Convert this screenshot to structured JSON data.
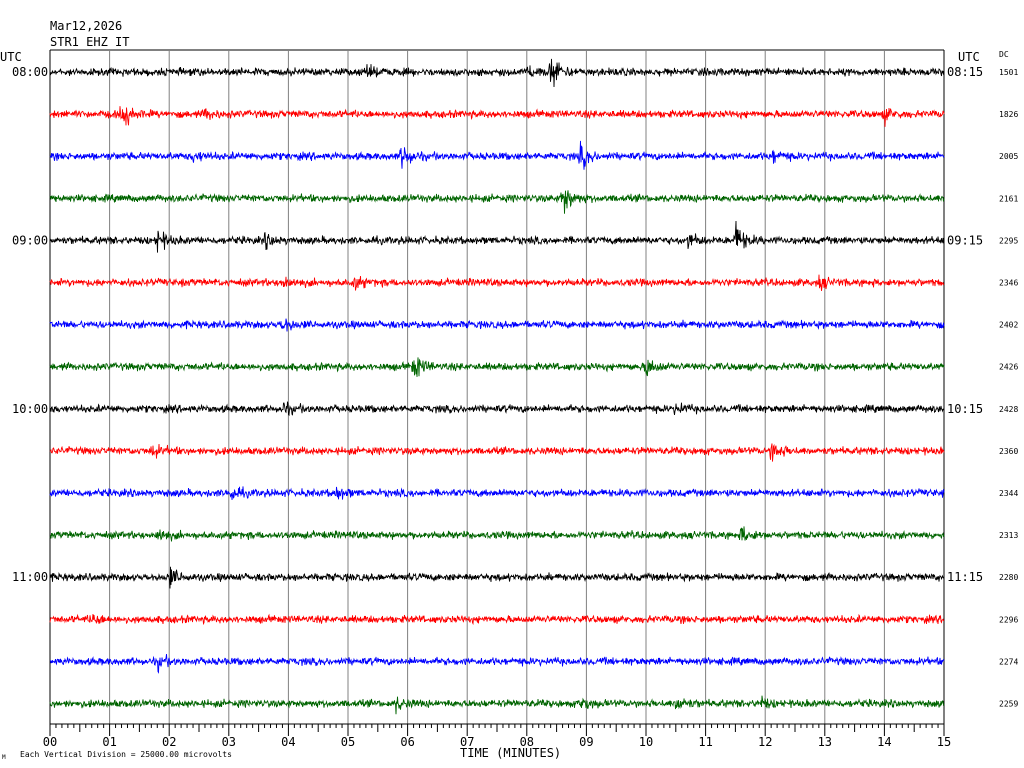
{
  "header": {
    "date": "Mar12,2026",
    "station": "STR1 EHZ IT"
  },
  "left_axis_label": "UTC",
  "right_axis_label": "UTC",
  "dc_label": "DC",
  "footer": {
    "scale_note": "Each Vertical Division = 25000.00 microvolts",
    "x_axis_title": "TIME (MINUTES)",
    "corner_mark": "M"
  },
  "colors": {
    "trace_cycle": [
      "#000000",
      "#ff0000",
      "#0000ff",
      "#006400"
    ],
    "grid": "#808080"
  },
  "chart_data": {
    "type": "line",
    "title": "Mar12,2026 STR1 EHZ IT",
    "xlabel": "TIME (MINUTES)",
    "ylabel": "",
    "xlim": [
      0,
      15
    ],
    "x_ticks": [
      "00",
      "01",
      "02",
      "03",
      "04",
      "05",
      "06",
      "07",
      "08",
      "09",
      "10",
      "11",
      "12",
      "13",
      "14",
      "15"
    ],
    "grid": true,
    "left_time_labels": [
      {
        "row": 0,
        "text": "08:00"
      },
      {
        "row": 4,
        "text": "09:00"
      },
      {
        "row": 8,
        "text": "10:00"
      },
      {
        "row": 12,
        "text": "11:00"
      }
    ],
    "right_time_labels": [
      {
        "row": 0,
        "text": "08:15"
      },
      {
        "row": 4,
        "text": "09:15"
      },
      {
        "row": 8,
        "text": "10:15"
      },
      {
        "row": 12,
        "text": "11:15"
      }
    ],
    "dc_offsets": [
      "1501",
      "1826",
      "2005",
      "2161",
      "2295",
      "2346",
      "2402",
      "2426",
      "2428",
      "2360",
      "2344",
      "2313",
      "2280",
      "2296",
      "2274",
      "2259"
    ],
    "events": [
      {
        "row": 0,
        "minute": 5.3,
        "amp": 1.2
      },
      {
        "row": 0,
        "minute": 8.0,
        "amp": 1.3
      },
      {
        "row": 0,
        "minute": 8.4,
        "amp": 3.8
      },
      {
        "row": 1,
        "minute": 1.2,
        "amp": 3.0
      },
      {
        "row": 1,
        "minute": 2.6,
        "amp": 1.1
      },
      {
        "row": 1,
        "minute": 14.0,
        "amp": 1.4
      },
      {
        "row": 2,
        "minute": 2.4,
        "amp": 1.1
      },
      {
        "row": 2,
        "minute": 5.9,
        "amp": 2.5
      },
      {
        "row": 2,
        "minute": 8.9,
        "amp": 2.2
      },
      {
        "row": 2,
        "minute": 12.1,
        "amp": 1.3
      },
      {
        "row": 3,
        "minute": 8.6,
        "amp": 3.4
      },
      {
        "row": 4,
        "minute": 1.8,
        "amp": 2.0
      },
      {
        "row": 4,
        "minute": 3.6,
        "amp": 1.3
      },
      {
        "row": 4,
        "minute": 10.7,
        "amp": 1.4
      },
      {
        "row": 4,
        "minute": 11.5,
        "amp": 3.0
      },
      {
        "row": 5,
        "minute": 3.9,
        "amp": 1.4
      },
      {
        "row": 5,
        "minute": 5.1,
        "amp": 1.3
      },
      {
        "row": 5,
        "minute": 12.9,
        "amp": 1.1
      },
      {
        "row": 6,
        "minute": 3.9,
        "amp": 1.5
      },
      {
        "row": 7,
        "minute": 6.1,
        "amp": 2.5
      },
      {
        "row": 7,
        "minute": 10.0,
        "amp": 2.0
      },
      {
        "row": 8,
        "minute": 3.9,
        "amp": 1.2
      },
      {
        "row": 8,
        "minute": 10.5,
        "amp": 1.1
      },
      {
        "row": 9,
        "minute": 1.7,
        "amp": 1.4
      },
      {
        "row": 9,
        "minute": 12.1,
        "amp": 2.6
      },
      {
        "row": 10,
        "minute": 3.0,
        "amp": 1.6
      },
      {
        "row": 10,
        "minute": 4.8,
        "amp": 1.3
      },
      {
        "row": 11,
        "minute": 1.8,
        "amp": 1.3
      },
      {
        "row": 11,
        "minute": 11.6,
        "amp": 1.8
      },
      {
        "row": 12,
        "minute": 2.0,
        "amp": 1.8
      },
      {
        "row": 13,
        "minute": 0.7,
        "amp": 1.1
      },
      {
        "row": 14,
        "minute": 1.8,
        "amp": 1.3
      },
      {
        "row": 15,
        "minute": 5.8,
        "amp": 1.3
      },
      {
        "row": 15,
        "minute": 8.9,
        "amp": 1.2
      },
      {
        "row": 15,
        "minute": 10.5,
        "amp": 1.8
      },
      {
        "row": 15,
        "minute": 11.9,
        "amp": 1.1
      }
    ]
  }
}
